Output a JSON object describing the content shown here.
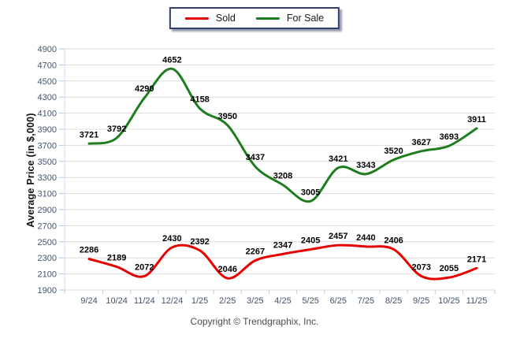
{
  "legend": {
    "items": [
      {
        "label": "Sold",
        "color": "#e60000"
      },
      {
        "label": "For Sale",
        "color": "#1e7d1e"
      }
    ]
  },
  "footer": {
    "copyright": "Copyright © Trendgraphix, Inc."
  },
  "chart_data": {
    "type": "line",
    "title": "",
    "xlabel": "",
    "ylabel": "Average Price (in $,000)",
    "categories": [
      "9/24",
      "10/24",
      "11/24",
      "12/24",
      "1/25",
      "2/25",
      "3/25",
      "4/25",
      "5/25",
      "6/25",
      "7/25",
      "8/25",
      "9/25",
      "10/25",
      "11/25"
    ],
    "series": [
      {
        "name": "Sold",
        "color": "#e60000",
        "values": [
          2286,
          2189,
          2072,
          2430,
          2392,
          2046,
          2267,
          2347,
          2405,
          2457,
          2440,
          2406,
          2073,
          2055,
          2171
        ]
      },
      {
        "name": "For Sale",
        "color": "#1e7d1e",
        "values": [
          3721,
          3792,
          4290,
          4652,
          4158,
          3950,
          3437,
          3208,
          3005,
          3421,
          3343,
          3520,
          3627,
          3693,
          3911
        ]
      }
    ],
    "ylim": [
      1900,
      4900
    ],
    "ytick_step": 200,
    "grid": "horizontal",
    "legend_position": "top-center",
    "colors": {
      "gridline": "#dcdcdc",
      "y_axis": "#c9d9ec",
      "y_tick": "#a9c6e5",
      "x_tick": "#c4ccd8",
      "tick_label": "#44546a",
      "data_label": "#000000"
    }
  }
}
